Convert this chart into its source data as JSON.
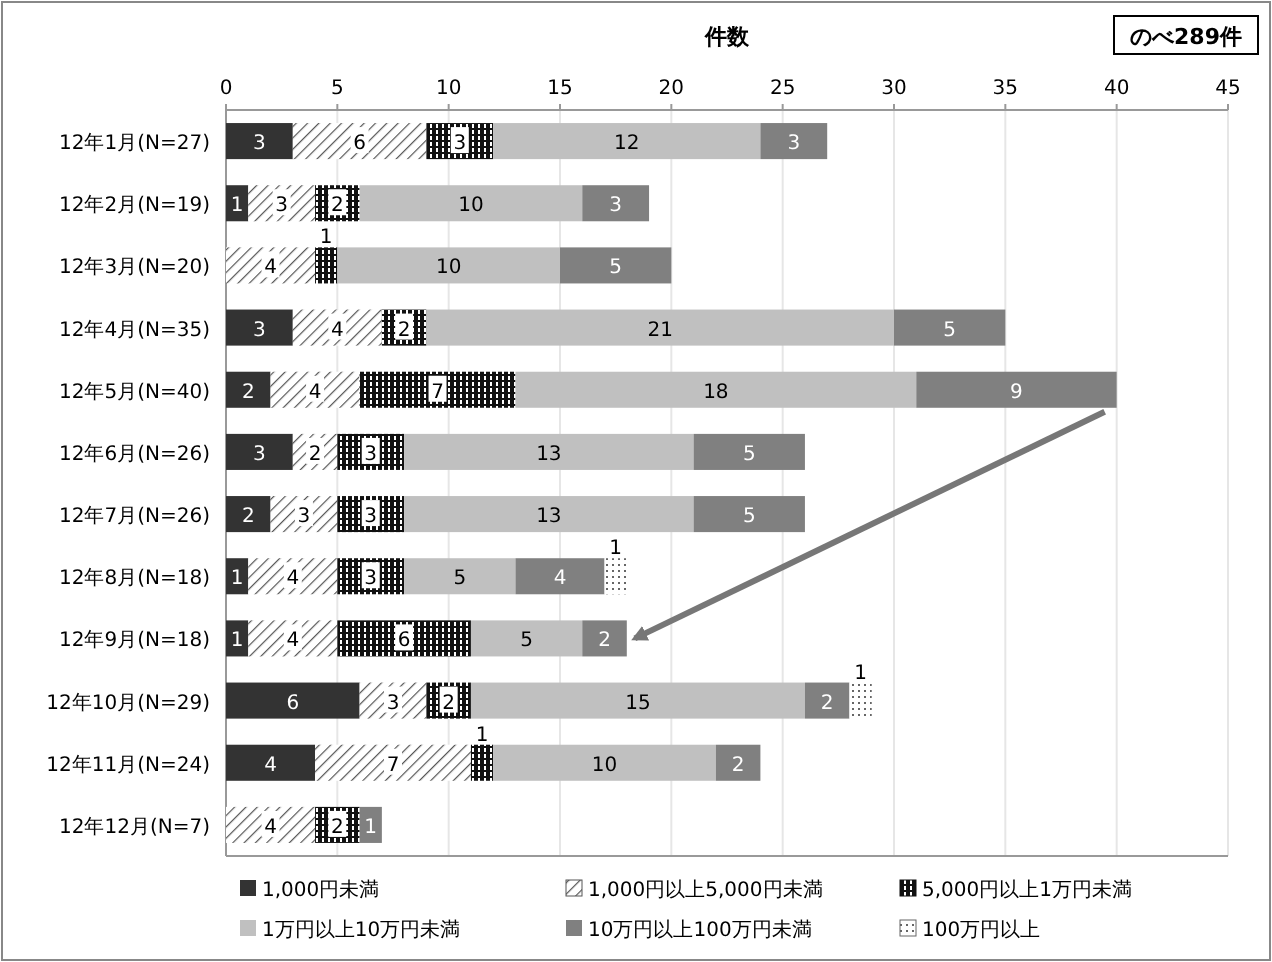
{
  "chart_data": {
    "type": "bar",
    "orientation": "horizontal",
    "stacked": true,
    "xlabel": "件数",
    "annotations": [
      "のべ289件"
    ],
    "categories": [
      "12年1月(N=27)",
      "12年2月(N=19)",
      "12年3月(N=20)",
      "12年4月(N=35)",
      "12年5月(N=40)",
      "12年6月(N=26)",
      "12年7月(N=26)",
      "12年8月(N=18)",
      "12年9月(N=18)",
      "12年10月(N=29)",
      "12年11月(N=24)",
      "12年12月(N=7)"
    ],
    "series": [
      {
        "name": "1,000円未満",
        "color": "#333333",
        "values": [
          3,
          1,
          null,
          3,
          2,
          3,
          2,
          1,
          1,
          6,
          4,
          null
        ]
      },
      {
        "name": "1,000円以上5,000円未満",
        "color": "#555555",
        "values": [
          6,
          3,
          4,
          4,
          4,
          2,
          3,
          4,
          4,
          3,
          7,
          4
        ]
      },
      {
        "name": "5,000円以上1万円未満",
        "color": "#111111",
        "values": [
          3,
          2,
          1,
          2,
          7,
          3,
          3,
          3,
          6,
          2,
          1,
          2
        ]
      },
      {
        "name": "1万円以上10万円未満",
        "color": "#c0c0c0",
        "values": [
          12,
          10,
          10,
          21,
          18,
          13,
          13,
          5,
          5,
          15,
          10,
          null
        ]
      },
      {
        "name": "10万円以上100万円未満",
        "color": "#808080",
        "values": [
          3,
          3,
          5,
          5,
          9,
          5,
          5,
          4,
          2,
          2,
          2,
          1
        ]
      },
      {
        "name": "100万円以上",
        "color": "#666666",
        "values": [
          null,
          null,
          null,
          null,
          null,
          null,
          null,
          1,
          null,
          1,
          null,
          null
        ]
      }
    ],
    "xlim": [
      0,
      45
    ],
    "xticks": [
      0,
      5,
      10,
      15,
      20,
      25,
      30,
      35,
      40,
      45
    ],
    "grid": "x",
    "legend": "bottom",
    "data_labels": true
  }
}
